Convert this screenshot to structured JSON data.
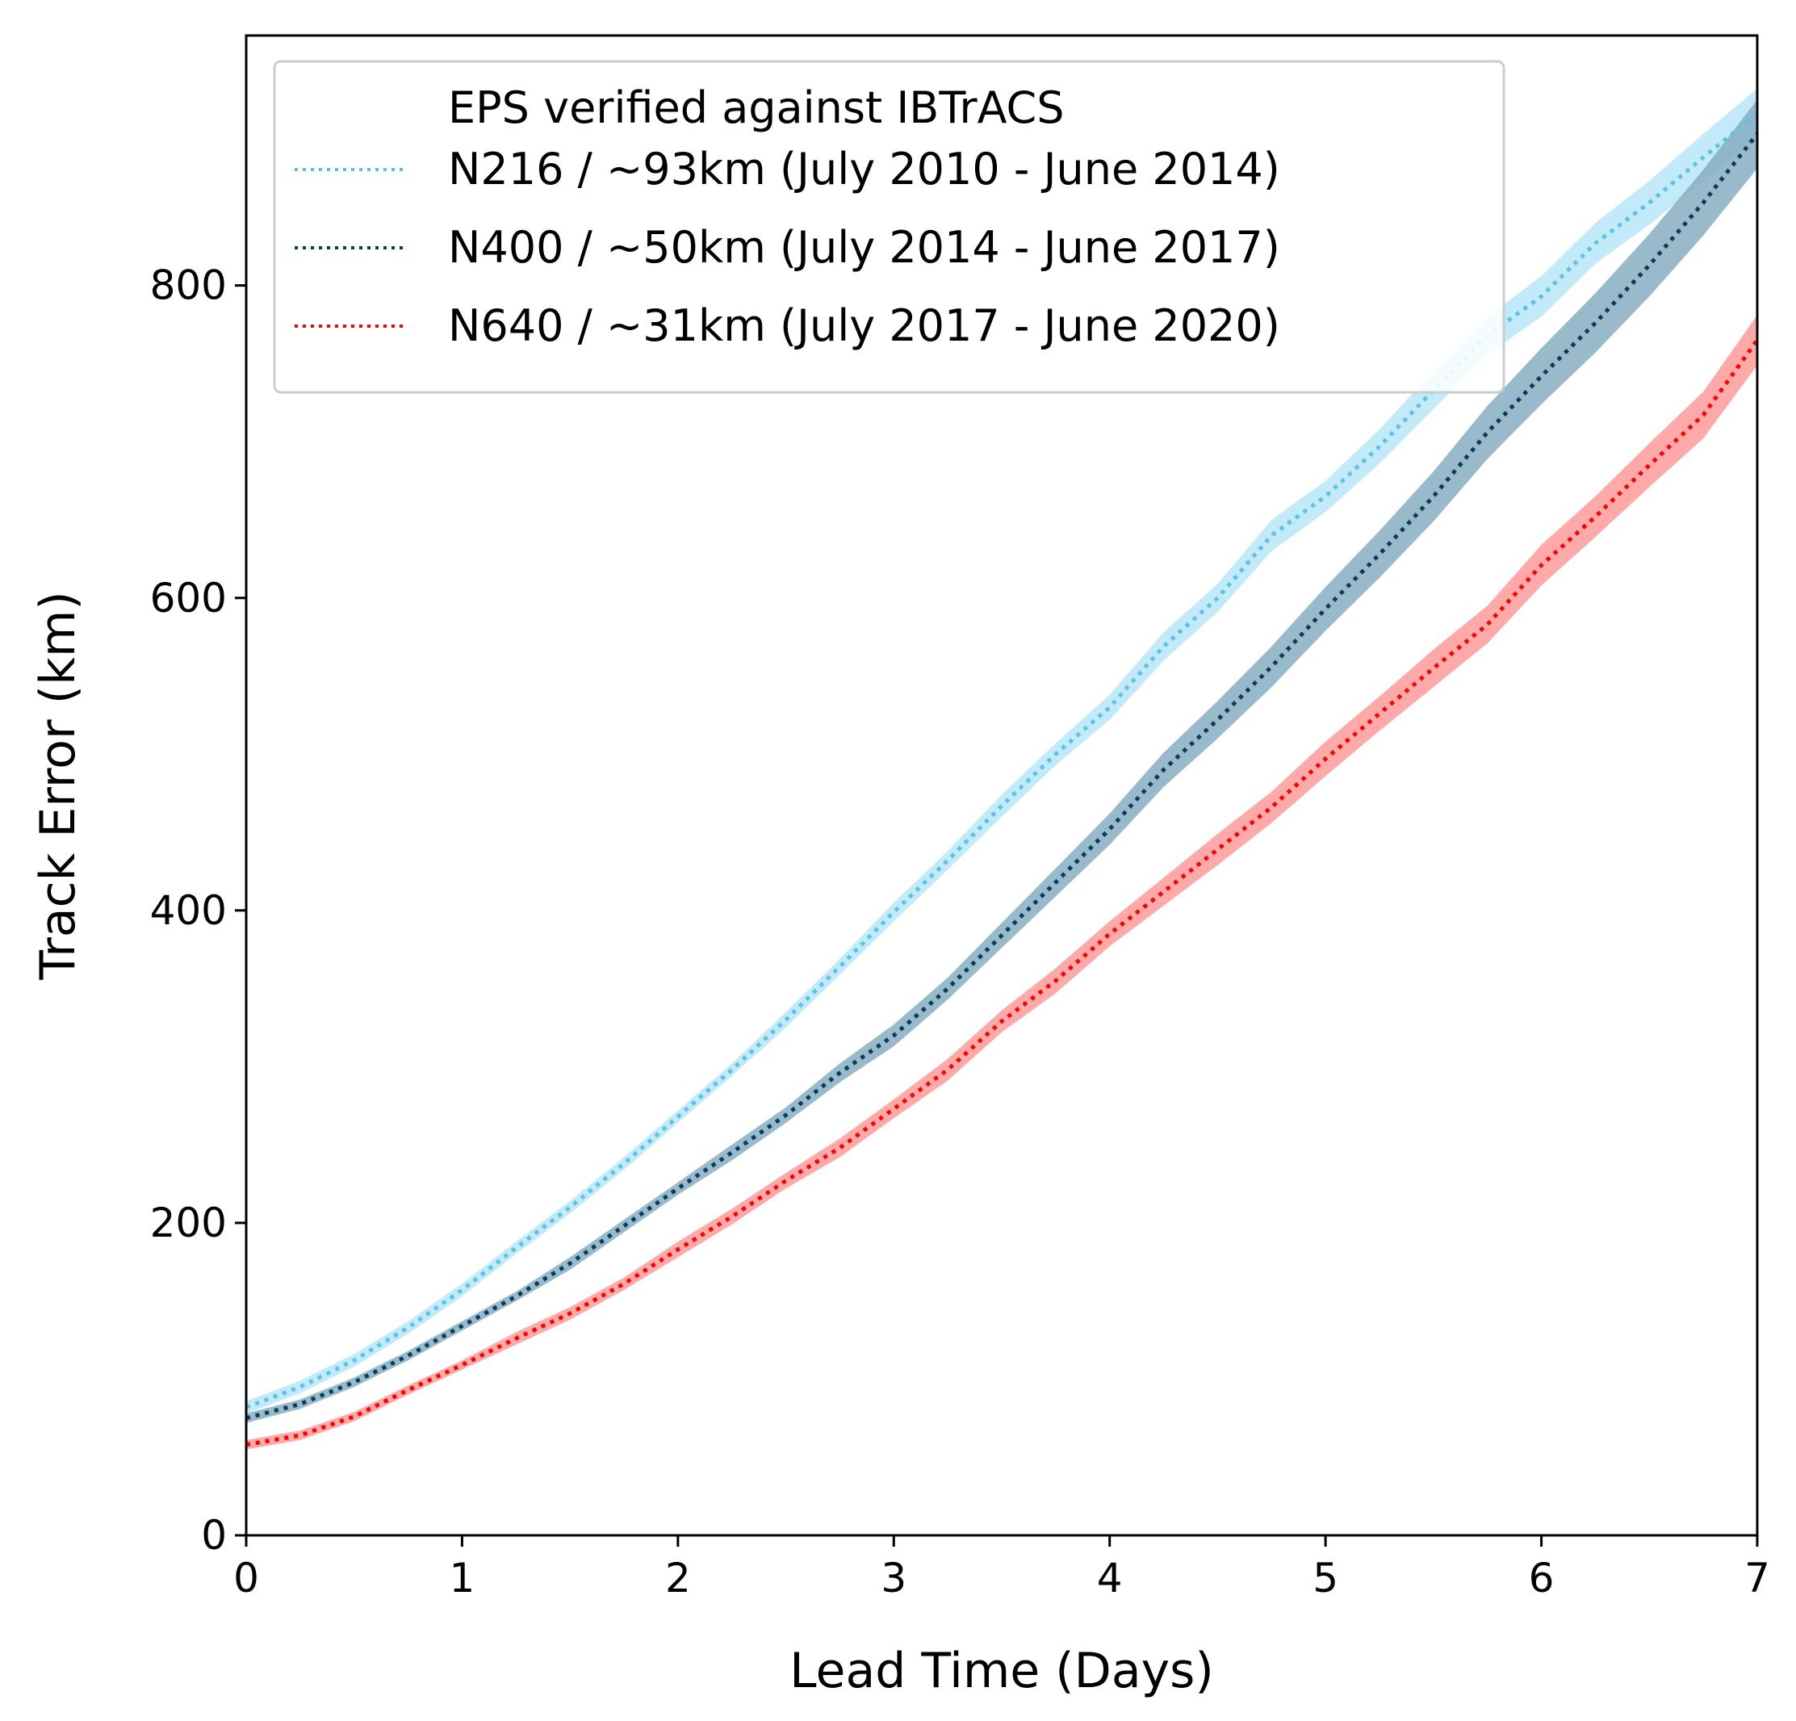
{
  "chart_data": {
    "type": "line",
    "xlabel": "Lead Time (Days)",
    "ylabel": "Track Error (km)",
    "xlim": [
      0,
      7
    ],
    "ylim": [
      0,
      960
    ],
    "xticks": [
      "0",
      "1",
      "2",
      "3",
      "4",
      "5",
      "6",
      "7"
    ],
    "yticks": [
      "0",
      "200",
      "400",
      "600",
      "800"
    ],
    "grid": false,
    "legend": {
      "placement": "top-left",
      "title": "EPS verified against IBTrACS"
    },
    "x": [
      0,
      0.25,
      0.5,
      0.75,
      1,
      1.25,
      1.5,
      1.75,
      2,
      2.25,
      2.5,
      2.75,
      3,
      3.25,
      3.5,
      3.75,
      4,
      4.25,
      4.5,
      4.75,
      5,
      5.25,
      5.5,
      5.75,
      6,
      6.25,
      6.5,
      6.75,
      7
    ],
    "series": [
      {
        "name": "N216 / ~93km (July 2010 - June 2014)",
        "color": "#5bc3e6",
        "band_color": "#aee3f5",
        "values": [
          82,
          95,
          112,
          133,
          157,
          184,
          210,
          238,
          268,
          298,
          330,
          364,
          399,
          432,
          467,
          500,
          530,
          569,
          600,
          640,
          665,
          697,
          733,
          768,
          793,
          827,
          853,
          882,
          910
        ],
        "band_halfwidth": [
          4,
          4,
          4,
          4,
          4,
          4,
          4,
          4,
          4,
          4,
          5,
          5,
          6,
          6,
          7,
          7,
          8,
          9,
          9,
          10,
          10,
          11,
          12,
          12,
          13,
          13,
          14,
          15,
          16
        ]
      },
      {
        "name": "N400 / ~50km (July 2014 - June 2017)",
        "color": "#083d5b",
        "band_color": "#86aec1",
        "values": [
          75,
          84,
          98,
          115,
          134,
          153,
          174,
          198,
          222,
          245,
          269,
          296,
          320,
          350,
          384,
          418,
          452,
          490,
          522,
          556,
          593,
          628,
          665,
          706,
          742,
          776,
          813,
          853,
          897
        ],
        "band_halfwidth": [
          3,
          3,
          3,
          3,
          3,
          3,
          4,
          4,
          4,
          5,
          5,
          6,
          7,
          7,
          8,
          9,
          10,
          11,
          12,
          13,
          14,
          15,
          16,
          17,
          18,
          19,
          20,
          21,
          22
        ]
      },
      {
        "name": "N640 / ~31km (July 2017 - June 2020)",
        "color": "#ff0000",
        "band_color": "#ff9a9a",
        "values": [
          58,
          64,
          76,
          93,
          109,
          126,
          142,
          161,
          183,
          204,
          227,
          248,
          273,
          298,
          329,
          355,
          385,
          412,
          439,
          466,
          497,
          526,
          555,
          583,
          621,
          652,
          685,
          717,
          765
        ],
        "band_halfwidth": [
          3,
          3,
          3,
          3,
          3,
          4,
          4,
          4,
          5,
          5,
          5,
          6,
          6,
          7,
          7,
          8,
          8,
          9,
          10,
          10,
          11,
          11,
          12,
          12,
          13,
          13,
          14,
          15,
          16
        ]
      }
    ]
  }
}
